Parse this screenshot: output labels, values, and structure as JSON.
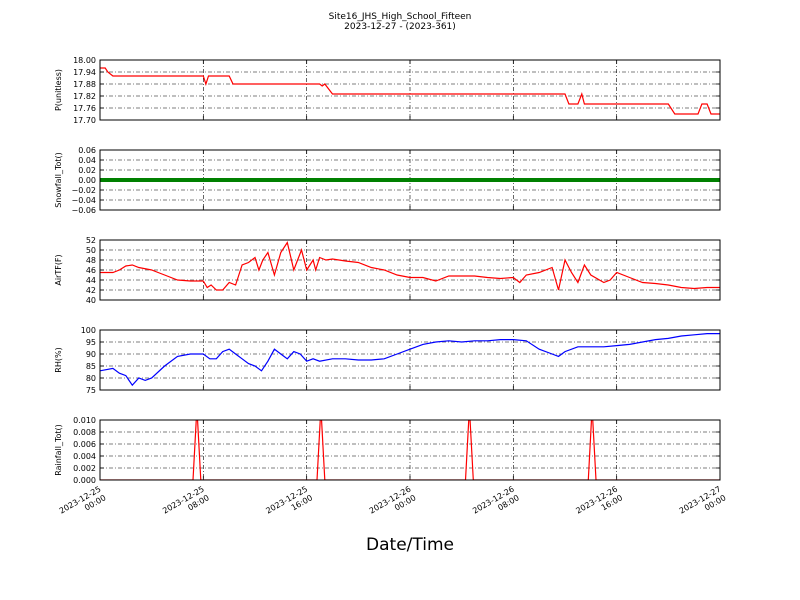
{
  "chart_data": {
    "type": "line",
    "title": "Site16_JHS_High_School_Fifteen",
    "subtitle": "2023-12-27 - (2023-361)",
    "xlabel": "Date/Time",
    "x_ticks": [
      "2023-12-25\n00:00",
      "2023-12-25\n08:00",
      "2023-12-25\n16:00",
      "2023-12-26\n00:00",
      "2023-12-26\n08:00",
      "2023-12-26\n16:00",
      "2023-12-27\n00:00"
    ],
    "x_range_hours": [
      0,
      48
    ],
    "grid": true,
    "panels": [
      {
        "ylabel": "P(unitless)",
        "ylim": [
          17.7,
          18.0
        ],
        "y_ticks": [
          "17.70",
          "17.76",
          "17.82",
          "17.88",
          "17.94",
          "18.00"
        ],
        "series": [
          {
            "color": "#ff0000",
            "x": [
              0,
              0.4,
              0.6,
              1.0,
              8.0,
              8.2,
              8.4,
              8.7,
              10.0,
              10.3,
              10.5,
              17.0,
              17.2,
              17.4,
              18.0,
              36.0,
              36.3,
              36.6,
              37.0,
              37.3,
              37.5,
              37.6,
              39.0,
              43.0,
              44.0,
              44.5,
              46.0,
              46.3,
              46.6,
              47.0,
              47.3,
              48.0
            ],
            "values": [
              17.96,
              17.96,
              17.94,
              17.92,
              17.92,
              17.88,
              17.92,
              17.92,
              17.92,
              17.88,
              17.88,
              17.88,
              17.87,
              17.88,
              17.83,
              17.83,
              17.78,
              17.78,
              17.78,
              17.83,
              17.78,
              17.78,
              17.78,
              17.78,
              17.78,
              17.73,
              17.73,
              17.73,
              17.78,
              17.78,
              17.73,
              17.73
            ]
          }
        ]
      },
      {
        "ylabel": "Snowfall_Tot()",
        "ylim": [
          -0.06,
          0.06
        ],
        "y_ticks": [
          "−0.06",
          "−0.04",
          "−0.02",
          "0.00",
          "0.02",
          "0.04",
          "0.06"
        ],
        "series": [
          {
            "color": "#008000",
            "x": [
              0,
              48
            ],
            "values": [
              0,
              0
            ]
          }
        ]
      },
      {
        "ylabel": "AirTF(F)",
        "ylim": [
          40,
          52
        ],
        "y_ticks": [
          "40",
          "42",
          "44",
          "46",
          "48",
          "50",
          "52"
        ],
        "series": [
          {
            "color": "#ff0000",
            "x": [
              0,
              1,
              1.5,
              2,
              2.5,
              3,
              4,
              4.5,
              5,
              6,
              7,
              8,
              8.3,
              8.6,
              9,
              9.5,
              10,
              10.5,
              11,
              11.5,
              12,
              12.3,
              12.6,
              13,
              13.5,
              14,
              14.5,
              15,
              15.3,
              15.6,
              16,
              16.5,
              16.7,
              17,
              17.5,
              18,
              19,
              20,
              21,
              22,
              23,
              24,
              25,
              26,
              27,
              28,
              29,
              30,
              31,
              32,
              32.5,
              33,
              34,
              35,
              35.5,
              36,
              36.5,
              37,
              37.5,
              38,
              39,
              39.5,
              40,
              41,
              42,
              43,
              44,
              45,
              46,
              47,
              48
            ],
            "values": [
              45.5,
              45.5,
              46,
              46.8,
              47,
              46.5,
              46,
              45.5,
              45,
              44,
              43.8,
              43.8,
              42.5,
              43,
              42,
              42,
              43.5,
              43,
              47,
              47.5,
              48.5,
              46,
              48,
              49.5,
              45,
              49.5,
              51.5,
              46,
              48,
              50,
              46,
              48,
              46,
              48.5,
              48,
              48.2,
              47.8,
              47.5,
              46.5,
              46,
              45,
              44.5,
              44.5,
              43.8,
              44.8,
              44.8,
              44.8,
              44.5,
              44.3,
              44.5,
              43.5,
              45,
              45.5,
              46.5,
              42,
              48,
              45.5,
              43.5,
              47,
              45,
              43.5,
              44,
              45.5,
              44.5,
              43.5,
              43.3,
              43,
              42.5,
              42.3,
              42.5,
              42.5
            ]
          }
        ]
      },
      {
        "ylabel": "RH(%)",
        "ylim": [
          75,
          100
        ],
        "y_ticks": [
          "75",
          "80",
          "85",
          "90",
          "95",
          "100"
        ],
        "series": [
          {
            "color": "#0000ff",
            "x": [
              0,
              1,
              1.5,
              2,
              2.5,
              3,
              3.5,
              4,
              5,
              6,
              7,
              8,
              8.5,
              9,
              9.5,
              10,
              10.5,
              11,
              11.5,
              12,
              12.5,
              13,
              13.5,
              14,
              14.5,
              15,
              15.5,
              16,
              16.5,
              17,
              18,
              19,
              20,
              21,
              22,
              23,
              24,
              25,
              26,
              27,
              28,
              29,
              30,
              31,
              32,
              33,
              34,
              35,
              35.5,
              36,
              37,
              38,
              39,
              40,
              41,
              42,
              43,
              44,
              45,
              46,
              47,
              48
            ],
            "values": [
              83,
              84,
              82,
              81,
              77,
              80,
              79,
              80,
              85,
              89,
              90,
              90,
              88,
              88,
              91,
              92,
              90,
              88,
              86,
              85,
              83,
              87,
              92,
              90,
              88,
              91,
              90,
              87,
              88,
              87,
              88,
              88,
              87.5,
              87.5,
              88,
              90,
              92,
              94,
              95,
              95.5,
              95,
              95.5,
              95.5,
              96,
              96,
              95.5,
              92,
              90,
              89,
              91,
              93,
              93,
              93,
              93.5,
              94,
              95,
              96,
              96.5,
              97.5,
              98,
              98.5,
              98.5
            ]
          }
        ]
      },
      {
        "ylabel": "Rainfall_Tot()",
        "ylim": [
          0,
          0.01
        ],
        "y_ticks": [
          "0.000",
          "0.002",
          "0.004",
          "0.006",
          "0.008",
          "0.010"
        ],
        "series": [
          {
            "color": "#ff0000",
            "x": [
              0,
              7.2,
              7.5,
              7.8,
              16.8,
              17.1,
              17.4,
              28.3,
              28.6,
              28.9,
              37.8,
              38.1,
              38.4,
              48
            ],
            "values": [
              0,
              0,
              0.012,
              0,
              0,
              0.012,
              0,
              0,
              0.012,
              0,
              0,
              0.012,
              0,
              0
            ]
          }
        ]
      }
    ]
  }
}
